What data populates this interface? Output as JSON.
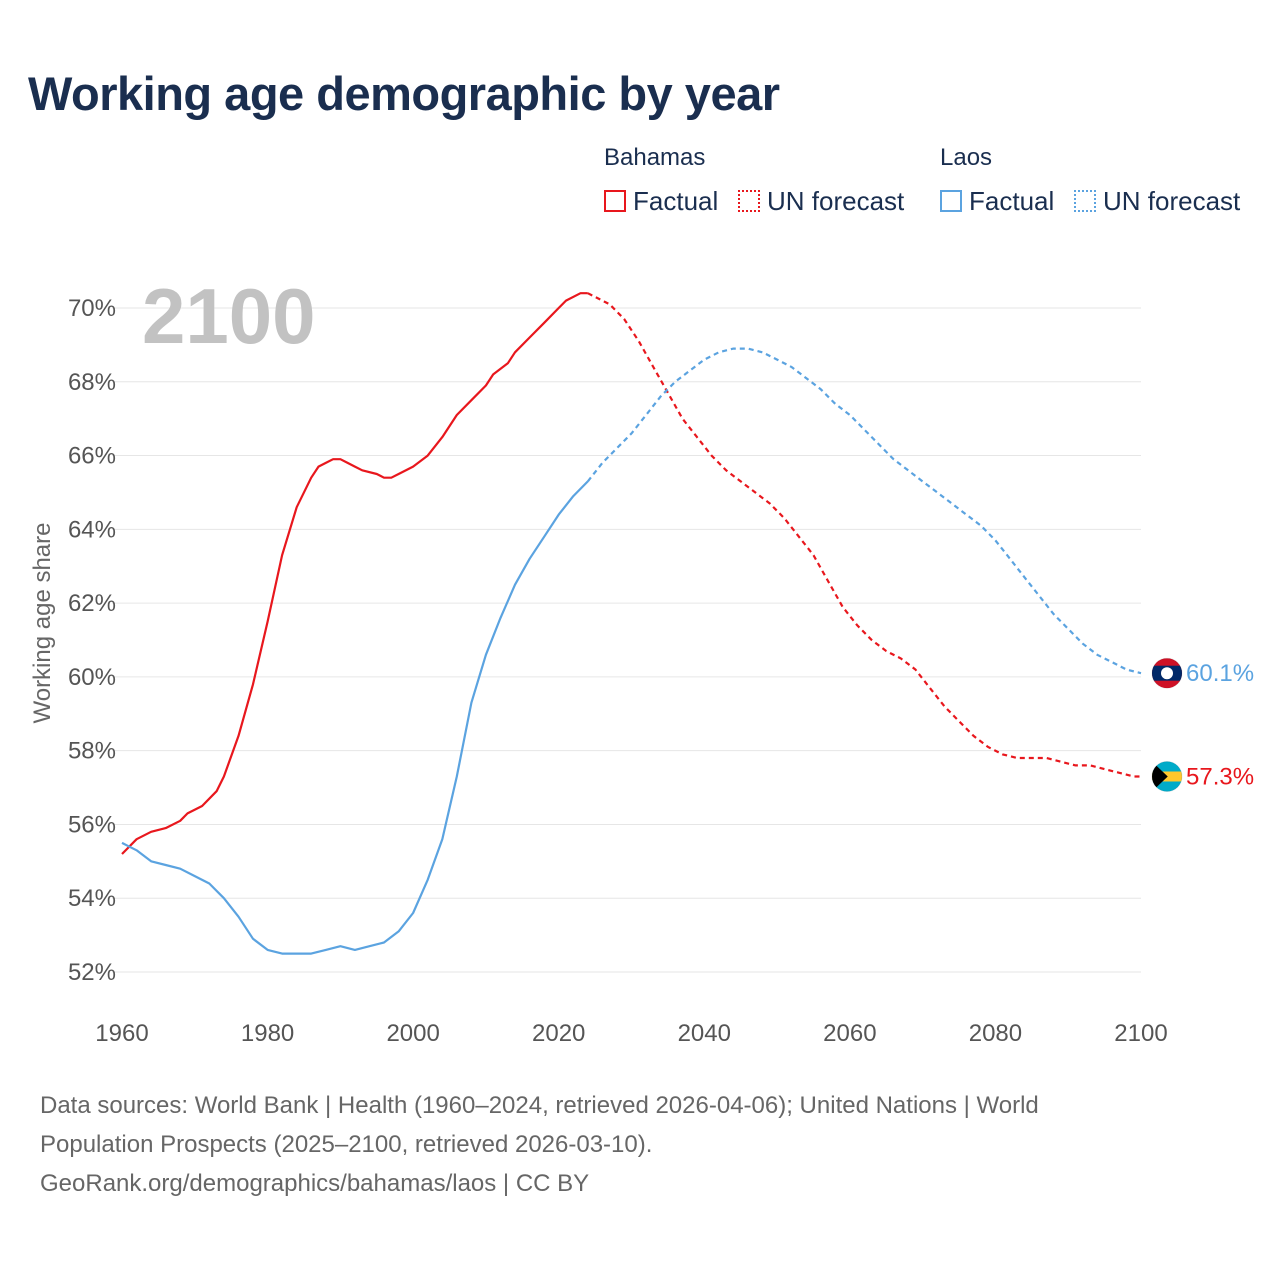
{
  "title": "Working age demographic by year",
  "legend": {
    "groups": [
      {
        "name": "Bahamas",
        "factual_label": "Factual",
        "forecast_label": "UN forecast",
        "color": "#e8171d"
      },
      {
        "name": "Laos",
        "factual_label": "Factual",
        "forecast_label": "UN forecast",
        "color": "#5ba3e0"
      }
    ]
  },
  "footer": {
    "line1": "Data sources: World Bank | Health (1960–2024, retrieved 2026-04-06); United Nations | World",
    "line2": "Population Prospects (2025–2100, retrieved 2026-03-10).",
    "line3": "GeoRank.org/demographics/bahamas/laos | CC BY"
  },
  "chart_data": {
    "type": "line",
    "title": "Working age demographic by year",
    "xlabel": "",
    "ylabel": "Working age share",
    "xlim": [
      1960,
      2100
    ],
    "ylim": [
      51.8,
      70.5
    ],
    "x_ticks": [
      1960,
      1980,
      2000,
      2020,
      2040,
      2060,
      2080,
      2100
    ],
    "x_tick_labels": [
      "1960",
      "1980",
      "2000",
      "2020",
      "2040",
      "2060",
      "2080",
      "2100"
    ],
    "y_ticks": [
      52,
      54,
      56,
      58,
      60,
      62,
      64,
      66,
      68,
      70
    ],
    "y_tick_labels": [
      "52%",
      "54%",
      "56%",
      "58%",
      "60%",
      "62%",
      "64%",
      "66%",
      "68%",
      "70%"
    ],
    "year_label": "2100",
    "grid": true,
    "legend_position": "top-right",
    "series": [
      {
        "name": "Bahamas",
        "color": "#e8171d",
        "end_label": "57.3%",
        "factual": {
          "x": [
            1960,
            1962,
            1964,
            1966,
            1968,
            1969,
            1971,
            1973,
            1974,
            1976,
            1978,
            1980,
            1982,
            1984,
            1986,
            1987,
            1988,
            1989,
            1990,
            1991,
            1992,
            1993,
            1995,
            1996,
            1997,
            1998,
            2000,
            2002,
            2004,
            2006,
            2008,
            2010,
            2011,
            2013,
            2014,
            2016,
            2018,
            2020,
            2021,
            2023,
            2024
          ],
          "y": [
            55.2,
            55.6,
            55.8,
            55.9,
            56.1,
            56.3,
            56.5,
            56.9,
            57.3,
            58.4,
            59.8,
            61.5,
            63.3,
            64.6,
            65.4,
            65.7,
            65.8,
            65.9,
            65.9,
            65.8,
            65.7,
            65.6,
            65.5,
            65.4,
            65.4,
            65.5,
            65.7,
            66.0,
            66.5,
            67.1,
            67.5,
            67.9,
            68.2,
            68.5,
            68.8,
            69.2,
            69.6,
            70.0,
            70.2,
            70.4,
            70.4
          ]
        },
        "forecast": {
          "x": [
            2024,
            2025,
            2027,
            2029,
            2031,
            2033,
            2035,
            2037,
            2039,
            2041,
            2043,
            2045,
            2047,
            2049,
            2051,
            2053,
            2055,
            2057,
            2059,
            2061,
            2063,
            2065,
            2067,
            2069,
            2071,
            2073,
            2075,
            2077,
            2079,
            2081,
            2083,
            2085,
            2087,
            2089,
            2091,
            2093,
            2095,
            2097,
            2099,
            2100
          ],
          "y": [
            70.4,
            70.3,
            70.1,
            69.7,
            69.1,
            68.4,
            67.7,
            67.0,
            66.5,
            66.0,
            65.6,
            65.3,
            65.0,
            64.7,
            64.3,
            63.8,
            63.3,
            62.6,
            61.9,
            61.4,
            61.0,
            60.7,
            60.5,
            60.2,
            59.7,
            59.2,
            58.8,
            58.4,
            58.1,
            57.9,
            57.8,
            57.8,
            57.8,
            57.7,
            57.6,
            57.6,
            57.5,
            57.4,
            57.3,
            57.3
          ]
        }
      },
      {
        "name": "Laos",
        "color": "#5ba3e0",
        "end_label": "60.1%",
        "factual": {
          "x": [
            1960,
            1962,
            1964,
            1966,
            1968,
            1970,
            1972,
            1974,
            1976,
            1978,
            1980,
            1982,
            1984,
            1986,
            1988,
            1990,
            1992,
            1994,
            1996,
            1998,
            2000,
            2002,
            2004,
            2006,
            2008,
            2010,
            2012,
            2014,
            2016,
            2018,
            2020,
            2022,
            2024
          ],
          "y": [
            55.5,
            55.3,
            55.0,
            54.9,
            54.8,
            54.6,
            54.4,
            54.0,
            53.5,
            52.9,
            52.6,
            52.5,
            52.5,
            52.5,
            52.6,
            52.7,
            52.6,
            52.7,
            52.8,
            53.1,
            53.6,
            54.5,
            55.6,
            57.3,
            59.3,
            60.6,
            61.6,
            62.5,
            63.2,
            63.8,
            64.4,
            64.9,
            65.3
          ]
        },
        "forecast": {
          "x": [
            2024,
            2026,
            2028,
            2030,
            2032,
            2034,
            2036,
            2038,
            2040,
            2042,
            2044,
            2046,
            2048,
            2050,
            2052,
            2054,
            2056,
            2058,
            2060,
            2062,
            2064,
            2066,
            2068,
            2070,
            2072,
            2074,
            2076,
            2078,
            2080,
            2082,
            2084,
            2086,
            2088,
            2090,
            2092,
            2094,
            2096,
            2098,
            2100
          ],
          "y": [
            65.3,
            65.8,
            66.2,
            66.6,
            67.1,
            67.6,
            68.0,
            68.3,
            68.6,
            68.8,
            68.9,
            68.9,
            68.8,
            68.6,
            68.4,
            68.1,
            67.8,
            67.4,
            67.1,
            66.7,
            66.3,
            65.9,
            65.6,
            65.3,
            65.0,
            64.7,
            64.4,
            64.1,
            63.7,
            63.2,
            62.7,
            62.2,
            61.7,
            61.3,
            60.9,
            60.6,
            60.4,
            60.2,
            60.1
          ]
        }
      }
    ]
  }
}
